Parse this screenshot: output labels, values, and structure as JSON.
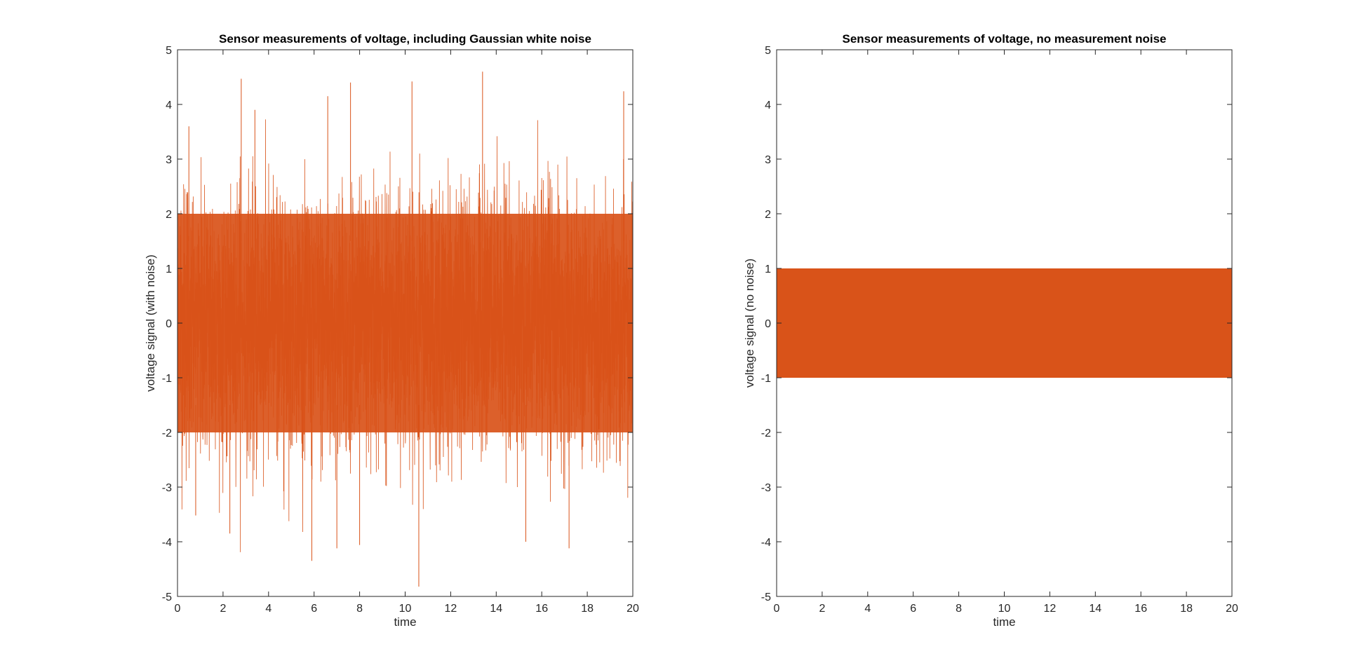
{
  "colors": {
    "series": "#D95319",
    "axis": "#262626",
    "background": "#ffffff"
  },
  "chart_data": [
    {
      "type": "line",
      "title": "Sensor measurements of voltage, including Gaussian white noise",
      "xlabel": "time",
      "ylabel": "voltage signal (with noise)",
      "xlim": [
        0,
        20
      ],
      "ylim": [
        -5,
        5
      ],
      "xticks": [
        "0",
        "2",
        "4",
        "6",
        "8",
        "10",
        "12",
        "14",
        "16",
        "18",
        "20"
      ],
      "yticks": [
        "-5",
        "-4",
        "-3",
        "-2",
        "-1",
        "0",
        "1",
        "2",
        "3",
        "4",
        "5"
      ],
      "grid": false,
      "series": [
        {
          "description": "dense signal with Gaussian noise; envelope roughly ±2.6 with spikes",
          "core_band": [
            -2.0,
            2.0
          ],
          "peaks": [
            {
              "x": 2.8,
              "y": 4.47
            },
            {
              "x": 6.6,
              "y": 4.15
            },
            {
              "x": 7.6,
              "y": 4.4
            },
            {
              "x": 10.3,
              "y": 4.42
            },
            {
              "x": 13.4,
              "y": 4.6
            },
            {
              "x": 19.6,
              "y": 4.24
            },
            {
              "x": 0.5,
              "y": 3.6
            },
            {
              "x": 3.4,
              "y": 3.9
            }
          ],
          "troughs": [
            {
              "x": 10.6,
              "y": -4.82
            },
            {
              "x": 5.9,
              "y": -4.35
            },
            {
              "x": 7.0,
              "y": -4.12
            },
            {
              "x": 8.0,
              "y": -4.06
            },
            {
              "x": 15.3,
              "y": -4.0
            },
            {
              "x": 17.2,
              "y": -4.12
            },
            {
              "x": 2.3,
              "y": -3.85
            },
            {
              "x": 0.8,
              "y": -3.52
            }
          ]
        }
      ]
    },
    {
      "type": "line",
      "title": "Sensor measurements of voltage, no measurement noise",
      "xlabel": "time",
      "ylabel": "voltage signal (no noise)",
      "xlim": [
        0,
        20
      ],
      "ylim": [
        -5,
        5
      ],
      "xticks": [
        "0",
        "2",
        "4",
        "6",
        "8",
        "10",
        "12",
        "14",
        "16",
        "18",
        "20"
      ],
      "yticks": [
        "-5",
        "-4",
        "-3",
        "-2",
        "-1",
        "0",
        "1",
        "2",
        "3",
        "4",
        "5"
      ],
      "grid": false,
      "series": [
        {
          "description": "high-frequency sinusoid, amplitude 1, fills band from -1 to 1",
          "amplitude": 1,
          "band": [
            -1,
            1
          ]
        }
      ]
    }
  ]
}
